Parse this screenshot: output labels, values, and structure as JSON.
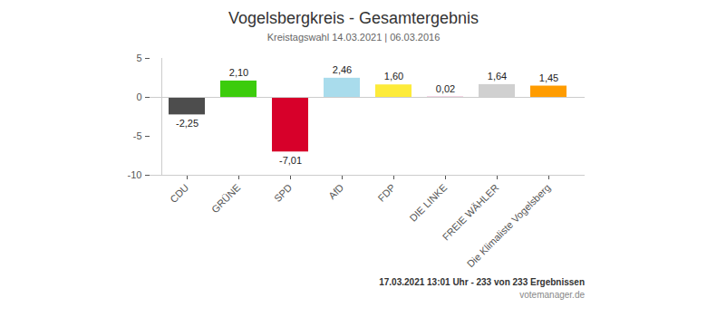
{
  "chart_data": {
    "type": "bar",
    "title": "Vogelsbergkreis - Gesamtergebnis",
    "subtitle": "Kreistagswahl 14.03.2021 | 06.03.2016",
    "categories": [
      "CDU",
      "GRÜNE",
      "SPD",
      "AfD",
      "FDP",
      "DIE LINKE",
      "FREIE WÄHLER",
      "Die Klimaliste Vogelsberg"
    ],
    "values": [
      -2.25,
      2.1,
      -7.01,
      2.46,
      1.6,
      0.02,
      1.64,
      1.45
    ],
    "value_labels": [
      "-2,25",
      "2,10",
      "-7,01",
      "2,46",
      "1,60",
      "0,02",
      "1,64",
      "1,45"
    ],
    "colors": [
      "#4d4d4d",
      "#3ccc0c",
      "#d7002a",
      "#a9dcec",
      "#fdeb3a",
      "#b5005a",
      "#d0d0d0",
      "#ff9c00"
    ],
    "ylim": [
      -10,
      5
    ],
    "yticks": [
      -10,
      -5,
      0,
      5
    ],
    "grid": false,
    "data_labels": true,
    "annotations": [
      "17.03.2021 13:01 Uhr - 233 von 233 Ergebnissen",
      "votemanager.de"
    ]
  }
}
